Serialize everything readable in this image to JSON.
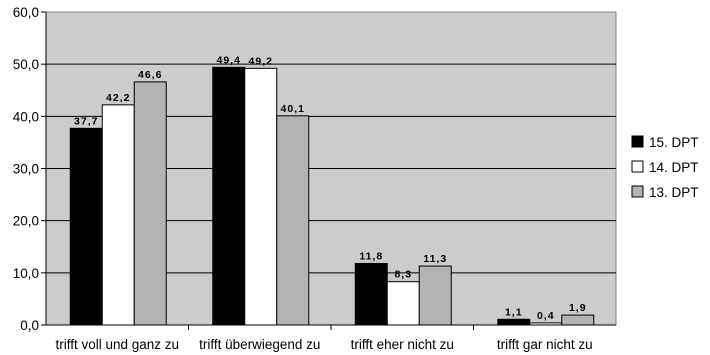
{
  "chart_data": {
    "type": "bar",
    "title": "",
    "xlabel": "",
    "ylabel": "",
    "categories": [
      "trifft voll und ganz zu",
      "trifft überwiegend zu",
      "trifft eher nicht zu",
      "trifft gar nicht zu"
    ],
    "series": [
      {
        "name": "15. DPT",
        "values": [
          37.7,
          49.4,
          11.8,
          1.1
        ],
        "labels": [
          "37,7",
          "49,4",
          "11,8",
          "1,1"
        ],
        "color": "#000000"
      },
      {
        "name": "14. DPT",
        "values": [
          42.2,
          49.2,
          8.3,
          0.4
        ],
        "labels": [
          "42,2",
          "49,2",
          "8,3",
          "0,4"
        ],
        "color": "#ffffff"
      },
      {
        "name": "13. DPT",
        "values": [
          46.6,
          40.1,
          11.3,
          1.9
        ],
        "labels": [
          "46,6",
          "40,1",
          "11,3",
          "1,9"
        ],
        "color": "#b3b3b3"
      }
    ],
    "ylim": [
      0,
      60
    ],
    "yticks": [
      0,
      10,
      20,
      30,
      40,
      50,
      60
    ],
    "ytick_labels": [
      "0,0",
      "10,0",
      "20,0",
      "30,0",
      "40,0",
      "50,0",
      "60,0"
    ],
    "grid": true,
    "plot_background": "#cccccc",
    "legend_position": "right"
  }
}
